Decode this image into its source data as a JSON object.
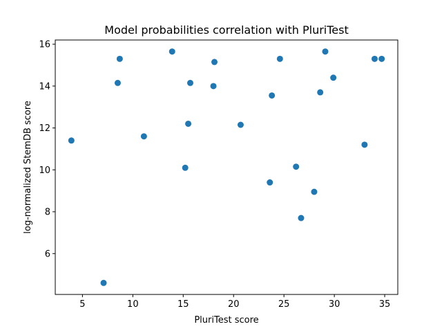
{
  "chart_data": {
    "type": "scatter",
    "title": "Model probabilities correlation with PluriTest",
    "xlabel": "PluriTest score",
    "ylabel": "log-normalized StemDB score",
    "xlim": [
      2.3,
      36.3
    ],
    "ylim": [
      4.05,
      16.2
    ],
    "xticks": [
      5,
      10,
      15,
      20,
      25,
      30,
      35
    ],
    "yticks": [
      6,
      8,
      10,
      12,
      14,
      16
    ],
    "grid": false,
    "marker_color": "#1f77b4",
    "points": [
      {
        "x": 3.9,
        "y": 11.4
      },
      {
        "x": 7.1,
        "y": 4.6
      },
      {
        "x": 8.5,
        "y": 14.15
      },
      {
        "x": 8.7,
        "y": 15.3
      },
      {
        "x": 11.1,
        "y": 11.6
      },
      {
        "x": 13.9,
        "y": 15.65
      },
      {
        "x": 15.2,
        "y": 10.1
      },
      {
        "x": 15.5,
        "y": 12.2
      },
      {
        "x": 15.7,
        "y": 14.15
      },
      {
        "x": 18.0,
        "y": 14.0
      },
      {
        "x": 18.1,
        "y": 15.15
      },
      {
        "x": 20.7,
        "y": 12.15
      },
      {
        "x": 23.6,
        "y": 9.4
      },
      {
        "x": 23.8,
        "y": 13.55
      },
      {
        "x": 24.6,
        "y": 15.3
      },
      {
        "x": 26.2,
        "y": 10.15
      },
      {
        "x": 26.7,
        "y": 7.7
      },
      {
        "x": 28.0,
        "y": 8.95
      },
      {
        "x": 28.6,
        "y": 13.7
      },
      {
        "x": 29.1,
        "y": 15.65
      },
      {
        "x": 29.9,
        "y": 14.4
      },
      {
        "x": 33.0,
        "y": 11.2
      },
      {
        "x": 34.0,
        "y": 15.3
      },
      {
        "x": 34.7,
        "y": 15.3
      }
    ]
  }
}
